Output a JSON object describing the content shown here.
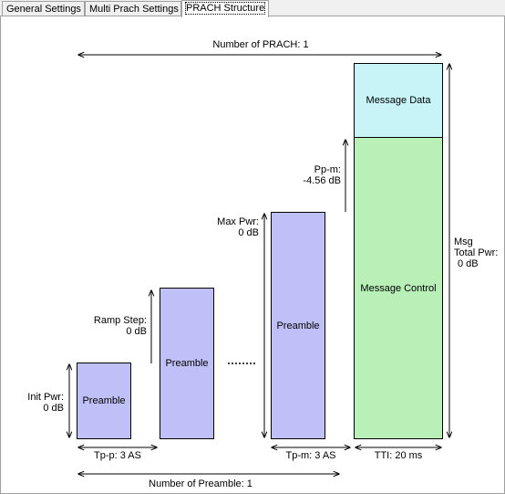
{
  "tabs": [
    {
      "label": "General Settings"
    },
    {
      "label": "Multi Prach Settings"
    },
    {
      "label": "PRACH Structure"
    }
  ],
  "diagram": {
    "number_of_prach": "Number of PRACH: 1",
    "number_of_preamble": "Number of Preamble: 1",
    "init_pwr_label": "Init Pwr:",
    "init_pwr_value": "0 dB",
    "ramp_step_label": "Ramp Step:",
    "ramp_step_value": "0 dB",
    "max_pwr_label": "Max Pwr:",
    "max_pwr_value": "0 dB",
    "pp_m_label": "Pp-m:",
    "pp_m_value": "-4.56 dB",
    "msg_label": "Msg",
    "total_pwr_label": "Total Pwr:",
    "total_pwr_value": "0 dB",
    "preamble_1": "Preamble",
    "preamble_2": "Preamble",
    "preamble_3": "Preamble",
    "message_data": "Message Data",
    "message_control": "Message Control",
    "tp_p": "Tp-p: 3 AS",
    "tp_m": "Tp-m: 3 AS",
    "tti": "TTI: 20 ms"
  }
}
